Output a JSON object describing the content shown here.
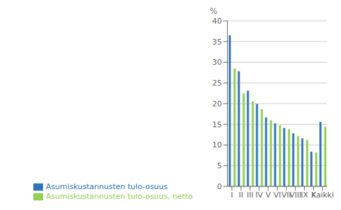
{
  "chart_data": {
    "type": "bar",
    "ylabel": "%",
    "categories": [
      "I",
      "II",
      "III",
      "IV",
      "V",
      "VI",
      "VII",
      "VIII",
      "IX",
      "X",
      "Kaikki"
    ],
    "series": [
      {
        "name": "Asumiskustannusten tulo-osuus",
        "color": "#2E75B6",
        "values": [
          36.5,
          27.8,
          23.1,
          19.9,
          16.7,
          15.2,
          14.1,
          12.8,
          11.6,
          8.4,
          15.6
        ]
      },
      {
        "name": "Asumiskustannusten tulo-osuus, netto",
        "color": "#92D050",
        "values": [
          28.5,
          22.5,
          20.5,
          18.7,
          16.0,
          14.8,
          13.8,
          12.2,
          11.2,
          8.2,
          14.4
        ]
      }
    ],
    "ylim": [
      0,
      40
    ],
    "yticks": [
      0,
      5,
      10,
      15,
      20,
      25,
      30,
      35,
      40
    ],
    "grid": true,
    "legend": "bottom"
  }
}
